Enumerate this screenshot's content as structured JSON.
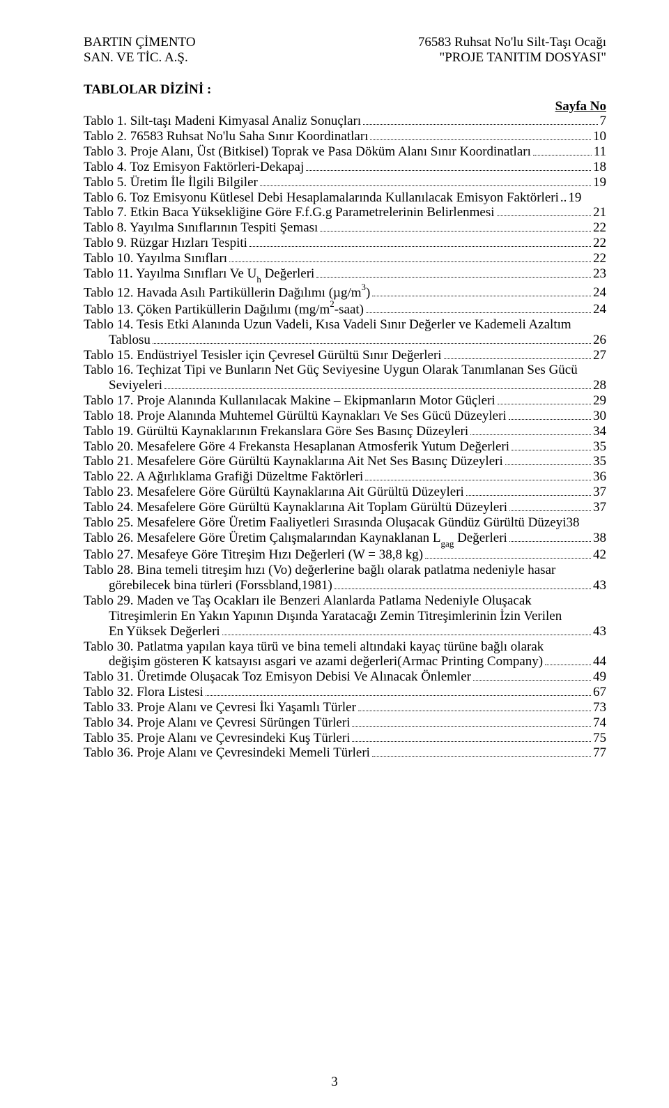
{
  "header": {
    "left_line1": "BARTIN ÇİMENTO",
    "left_line2": "SAN. VE TİC. A.Ş.",
    "right_line1": "76583 Ruhsat No'lu Silt-Taşı Ocağı",
    "right_line2": "\"PROJE TANITIM DOSYASI\""
  },
  "section_title": "TABLOLAR DİZİNİ :",
  "sayfa_no_label": "Sayfa No",
  "page_number": "3",
  "entries": [
    {
      "label": "Tablo 1. Silt-taşı Madeni Kimyasal Analiz Sonuçları",
      "page": "7"
    },
    {
      "label": "Tablo 2. 76583 Ruhsat No'lu Saha Sınır Koordinatları",
      "page": "10"
    },
    {
      "label": "Tablo 3. Proje Alanı, Üst (Bitkisel) Toprak ve Pasa Döküm Alanı  Sınır Koordinatları",
      "page": "11"
    },
    {
      "label": "Tablo 4. Toz Emisyon Faktörleri-Dekapaj",
      "page": "18"
    },
    {
      "label": "Tablo 5. Üretim İle İlgili Bilgiler",
      "page": "19"
    },
    {
      "label": "Tablo 6. Toz Emisyonu Kütlesel Debi Hesaplamalarında Kullanılacak Emisyon Faktörleri",
      "page": "19",
      "nodots": true
    },
    {
      "label": "Tablo 7. Etkin Baca Yüksekliğine Göre F.f.G.g Parametrelerinin Belirlenmesi",
      "page": "21"
    },
    {
      "label": "Tablo 8. Yayılma Sınıflarının Tespiti Şeması",
      "page": "22"
    },
    {
      "label": "Tablo 9. Rüzgar Hızları Tespiti",
      "page": "22"
    },
    {
      "label": "Tablo 10. Yayılma Sınıfları",
      "page": "22"
    },
    {
      "label_html": "Tablo 11. Yayılma Sınıfları Ve U<span class='sub'>h</span> Değerleri",
      "page": "23"
    },
    {
      "label_html": "Tablo 12. Havada Asılı Partiküllerin Dağılımı (µg/m<span class='sup'>3</span>)",
      "page": "24"
    },
    {
      "label_html": "Tablo 13. Çöken Partiküllerin Dağılımı (mg/m<span class='sup'>2</span>-saat)",
      "page": "24"
    },
    {
      "multi": [
        {
          "label": "Tablo 14. Tesis Etki Alanında Uzun Vadeli, Kısa Vadeli Sınır Değerler ve Kademeli Azaltım"
        },
        {
          "label": "Tablosu",
          "page": "26",
          "indent": true
        }
      ]
    },
    {
      "label": "Tablo 15. Endüstriyel Tesisler için Çevresel Gürültü Sınır Değerleri",
      "page": "27"
    },
    {
      "multi": [
        {
          "label": "Tablo 16. Teçhizat Tipi ve Bunların Net Güç Seviyesine Uygun Olarak Tanımlanan Ses Gücü"
        },
        {
          "label": "Seviyeleri",
          "page": "28",
          "indent": true
        }
      ]
    },
    {
      "label": "Tablo 17. Proje Alanında Kullanılacak Makine – Ekipmanların Motor Güçleri",
      "page": "29"
    },
    {
      "label": "Tablo 18. Proje Alanında Muhtemel Gürültü Kaynakları Ve Ses Gücü Düzeyleri",
      "page": "30"
    },
    {
      "label": "Tablo 19. Gürültü Kaynaklarının Frekanslara Göre Ses Basınç Düzeyleri",
      "page": "34"
    },
    {
      "label": "Tablo 20. Mesafelere Göre 4 Frekansta Hesaplanan Atmosferik Yutum Değerleri",
      "page": "35"
    },
    {
      "label": "Tablo 21. Mesafelere Göre Gürültü Kaynaklarına Ait Net Ses Basınç Düzeyleri",
      "page": "35"
    },
    {
      "label": "Tablo 22. A Ağırlıklama Grafiği Düzeltme Faktörleri",
      "page": "36"
    },
    {
      "label": "Tablo 23. Mesafelere Göre Gürültü Kaynaklarına Ait Gürültü Düzeyleri",
      "page": "37"
    },
    {
      "label": "Tablo 24. Mesafelere Göre Gürültü Kaynaklarına Ait Toplam Gürültü Düzeyleri",
      "page": "37"
    },
    {
      "label": "Tablo 25. Mesafelere Göre Üretim Faaliyetleri Sırasında Oluşacak Gündüz Gürültü Düzeyi",
      "page": "38",
      "nodots": true,
      "space_before_page": true
    },
    {
      "label_html": "Tablo 26. Mesafelere Göre Üretim Çalışmalarından Kaynaklanan L<span class='sub'>gag</span> Değerleri",
      "page": "38"
    },
    {
      "label": "Tablo 27.  Mesafeye Göre Titreşim Hızı Değerleri (W = 38,8 kg)",
      "page": "42"
    },
    {
      "multi": [
        {
          "label": "Tablo 28. Bina temeli titreşim hızı (Vo) değerlerine bağlı olarak patlatma nedeniyle hasar"
        },
        {
          "label": "görebilecek bina türleri (Forssbland,1981)",
          "page": "43",
          "indent": true
        }
      ]
    },
    {
      "multi": [
        {
          "label": "Tablo 29. Maden ve Taş Ocakları ile Benzeri Alanlarda Patlama Nedeniyle Oluşacak"
        },
        {
          "label": "Titreşimlerin En Yakın Yapının Dışında Yaratacağı Zemin Titreşimlerinin İzin Verilen",
          "indent": true
        },
        {
          "label": "En Yüksek Değerleri",
          "page": "43",
          "indent": true
        }
      ]
    },
    {
      "multi": [
        {
          "label": "Tablo 30. Patlatma yapılan kaya türü ve bina temeli altındaki kayaç türüne bağlı olarak"
        },
        {
          "label": "değişim gösteren K katsayısı asgari ve azami değerleri(Armac Printing Company)",
          "page": "44",
          "indent": true
        }
      ]
    },
    {
      "label": "Tablo 31. Üretimde Oluşacak Toz Emisyon Debisi Ve Alınacak Önlemler",
      "page": "49"
    },
    {
      "label": "Tablo 32. Flora Listesi",
      "page": "67"
    },
    {
      "label": "Tablo 33. Proje Alanı ve Çevresi İki Yaşamlı Türler",
      "page": "73"
    },
    {
      "label": "Tablo 34. Proje Alanı ve Çevresi Sürüngen Türleri",
      "page": "74"
    },
    {
      "label": "Tablo 35. Proje Alanı ve Çevresindeki Kuş Türleri",
      "page": "75"
    },
    {
      "label": "Tablo 36. Proje Alanı ve Çevresindeki Memeli Türleri",
      "page": "77"
    }
  ]
}
